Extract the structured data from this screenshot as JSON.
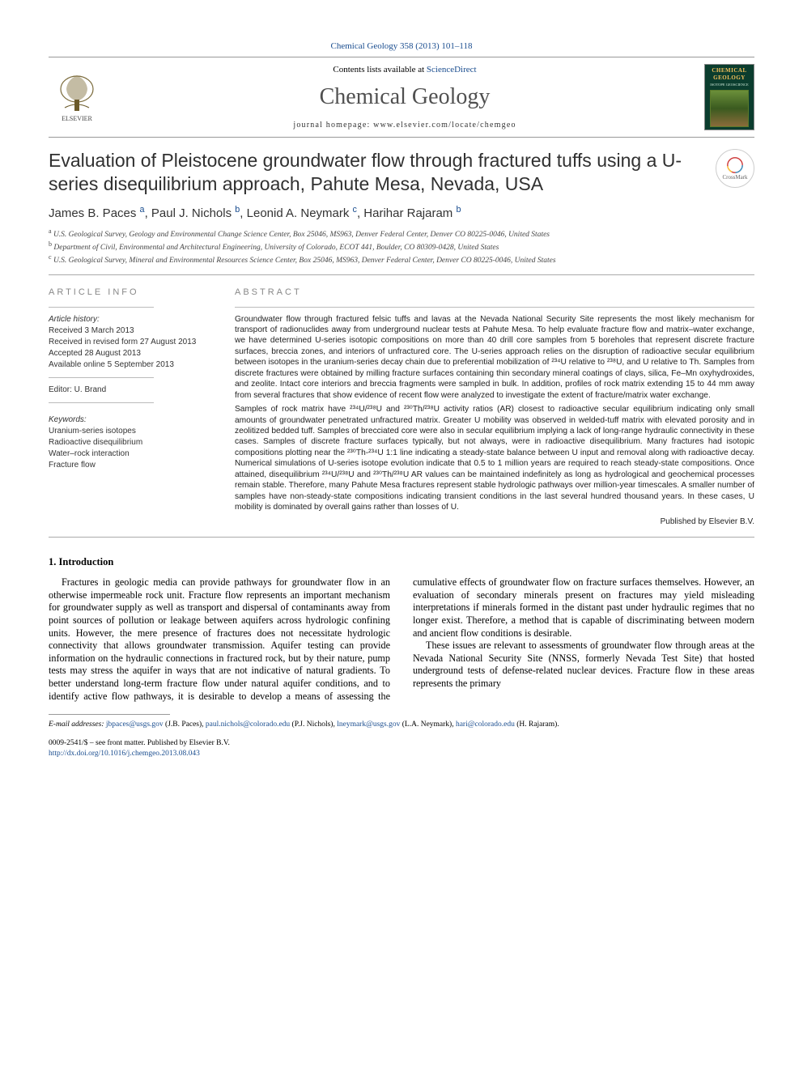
{
  "journal": {
    "reference": "Chemical Geology 358 (2013) 101–118",
    "contents_prefix": "Contents lists available at ",
    "contents_link": "ScienceDirect",
    "name": "Chemical Geology",
    "homepage_label": "journal homepage: ",
    "homepage_url": "www.elsevier.com/locate/chemgeo",
    "cover": {
      "line1": "CHEMICAL",
      "line2": "GEOLOGY",
      "line3": "ISOTOPE GEOSCIENCE"
    }
  },
  "paper": {
    "title": "Evaluation of Pleistocene groundwater flow through fractured tuffs using a U-series disequilibrium approach, Pahute Mesa, Nevada, USA",
    "authors_html": "James B. Paces <a href='#'><sup>a</sup></a>, Paul J. Nichols <a href='#'><sup>b</sup></a>, Leonid A. Neymark <a href='#'><sup>c</sup></a>, Harihar Rajaram <a href='#'><sup>b</sup></a>",
    "crossmark_label": "CrossMark"
  },
  "affiliations": {
    "a": "U.S. Geological Survey, Geology and Environmental Change Science Center, Box 25046, MS963, Denver Federal Center, Denver CO 80225-0046, United States",
    "b": "Department of Civil, Environmental and Architectural Engineering, University of Colorado, ECOT 441, Boulder, CO 80309-0428, United States",
    "c": "U.S. Geological Survey, Mineral and Environmental Resources Science Center, Box 25046, MS963, Denver Federal Center, Denver CO 80225-0046, United States"
  },
  "article_info": {
    "heading": "article info",
    "history_label": "Article history:",
    "received": "Received 3 March 2013",
    "revised": "Received in revised form 27 August 2013",
    "accepted": "Accepted 28 August 2013",
    "online": "Available online 5 September 2013",
    "editor": "Editor: U. Brand",
    "keywords_label": "Keywords:",
    "keywords": [
      "Uranium-series isotopes",
      "Radioactive disequilibrium",
      "Water–rock interaction",
      "Fracture flow"
    ]
  },
  "abstract": {
    "heading": "abstract",
    "p1": "Groundwater flow through fractured felsic tuffs and lavas at the Nevada National Security Site represents the most likely mechanism for transport of radionuclides away from underground nuclear tests at Pahute Mesa. To help evaluate fracture flow and matrix–water exchange, we have determined U-series isotopic compositions on more than 40 drill core samples from 5 boreholes that represent discrete fracture surfaces, breccia zones, and interiors of unfractured core. The U-series approach relies on the disruption of radioactive secular equilibrium between isotopes in the uranium-series decay chain due to preferential mobilization of ²³⁴U relative to ²³⁸U, and U relative to Th. Samples from discrete fractures were obtained by milling fracture surfaces containing thin secondary mineral coatings of clays, silica, Fe–Mn oxyhydroxides, and zeolite. Intact core interiors and breccia fragments were sampled in bulk. In addition, profiles of rock matrix extending 15 to 44 mm away from several fractures that show evidence of recent flow were analyzed to investigate the extent of fracture/matrix water exchange.",
    "p2": "Samples of rock matrix have ²³⁴U/²³⁸U and ²³⁰Th/²³⁸U activity ratios (AR) closest to radioactive secular equilibrium indicating only small amounts of groundwater penetrated unfractured matrix. Greater U mobility was observed in welded-tuff matrix with elevated porosity and in zeolitized bedded tuff. Samples of brecciated core were also in secular equilibrium implying a lack of long-range hydraulic connectivity in these cases. Samples of discrete fracture surfaces typically, but not always, were in radioactive disequilibrium. Many fractures had isotopic compositions plotting near the ²³⁰Th-²³⁴U 1:1 line indicating a steady-state balance between U input and removal along with radioactive decay. Numerical simulations of U-series isotope evolution indicate that 0.5 to 1 million years are required to reach steady-state compositions. Once attained, disequilibrium ²³⁴U/²³⁸U and ²³⁰Th/²³⁸U AR values can be maintained indefinitely as long as hydrological and geochemical processes remain stable. Therefore, many Pahute Mesa fractures represent stable hydrologic pathways over million-year timescales. A smaller number of samples have non-steady-state compositions indicating transient conditions in the last several hundred thousand years. In these cases, U mobility is dominated by overall gains rather than losses of U.",
    "publisher": "Published by Elsevier B.V."
  },
  "intro": {
    "heading": "1. Introduction",
    "p1": "Fractures in geologic media can provide pathways for groundwater flow in an otherwise impermeable rock unit. Fracture flow represents an important mechanism for groundwater supply as well as transport and dispersal of contaminants away from point sources of pollution or leakage between aquifers across hydrologic confining units. However, the mere presence of fractures does not necessitate hydrologic connectivity that allows groundwater transmission. Aquifer testing can provide information on the hydraulic connections in fractured rock, but by their nature, pump tests may stress the aquifer in ways that are not indicative of natural gradients. To better understand long-term fracture flow under natural aquifer conditions, and to identify active flow pathways, it is desirable to develop a means of assessing the cumulative effects of groundwater flow on fracture surfaces themselves. However, an evaluation of secondary minerals present on fractures may yield misleading interpretations if minerals formed in the distant past under hydraulic regimes that no longer exist. Therefore, a method that is capable of discriminating between modern and ancient flow conditions is desirable.",
    "p2": "These issues are relevant to assessments of groundwater flow through areas at the Nevada National Security Site (NNSS, formerly Nevada Test Site) that hosted underground tests of defense-related nuclear devices. Fracture flow in these areas represents the primary"
  },
  "footnotes": {
    "email_label": "E-mail addresses:",
    "emails": [
      {
        "addr": "jbpaces@usgs.gov",
        "who": "(J.B. Paces)"
      },
      {
        "addr": "paul.nichols@colorado.edu",
        "who": "(P.J. Nichols)"
      },
      {
        "addr": "lneymark@usgs.gov",
        "who": "(L.A. Neymark)"
      },
      {
        "addr": "hari@colorado.edu",
        "who": "(H. Rajaram)"
      }
    ]
  },
  "footer": {
    "issn_line": "0009-2541/$ – see front matter. Published by Elsevier B.V.",
    "doi": "http://dx.doi.org/10.1016/j.chemgeo.2013.08.043"
  },
  "colors": {
    "link": "#1a4d8f",
    "rule": "#999999",
    "title_gray": "#505050"
  }
}
